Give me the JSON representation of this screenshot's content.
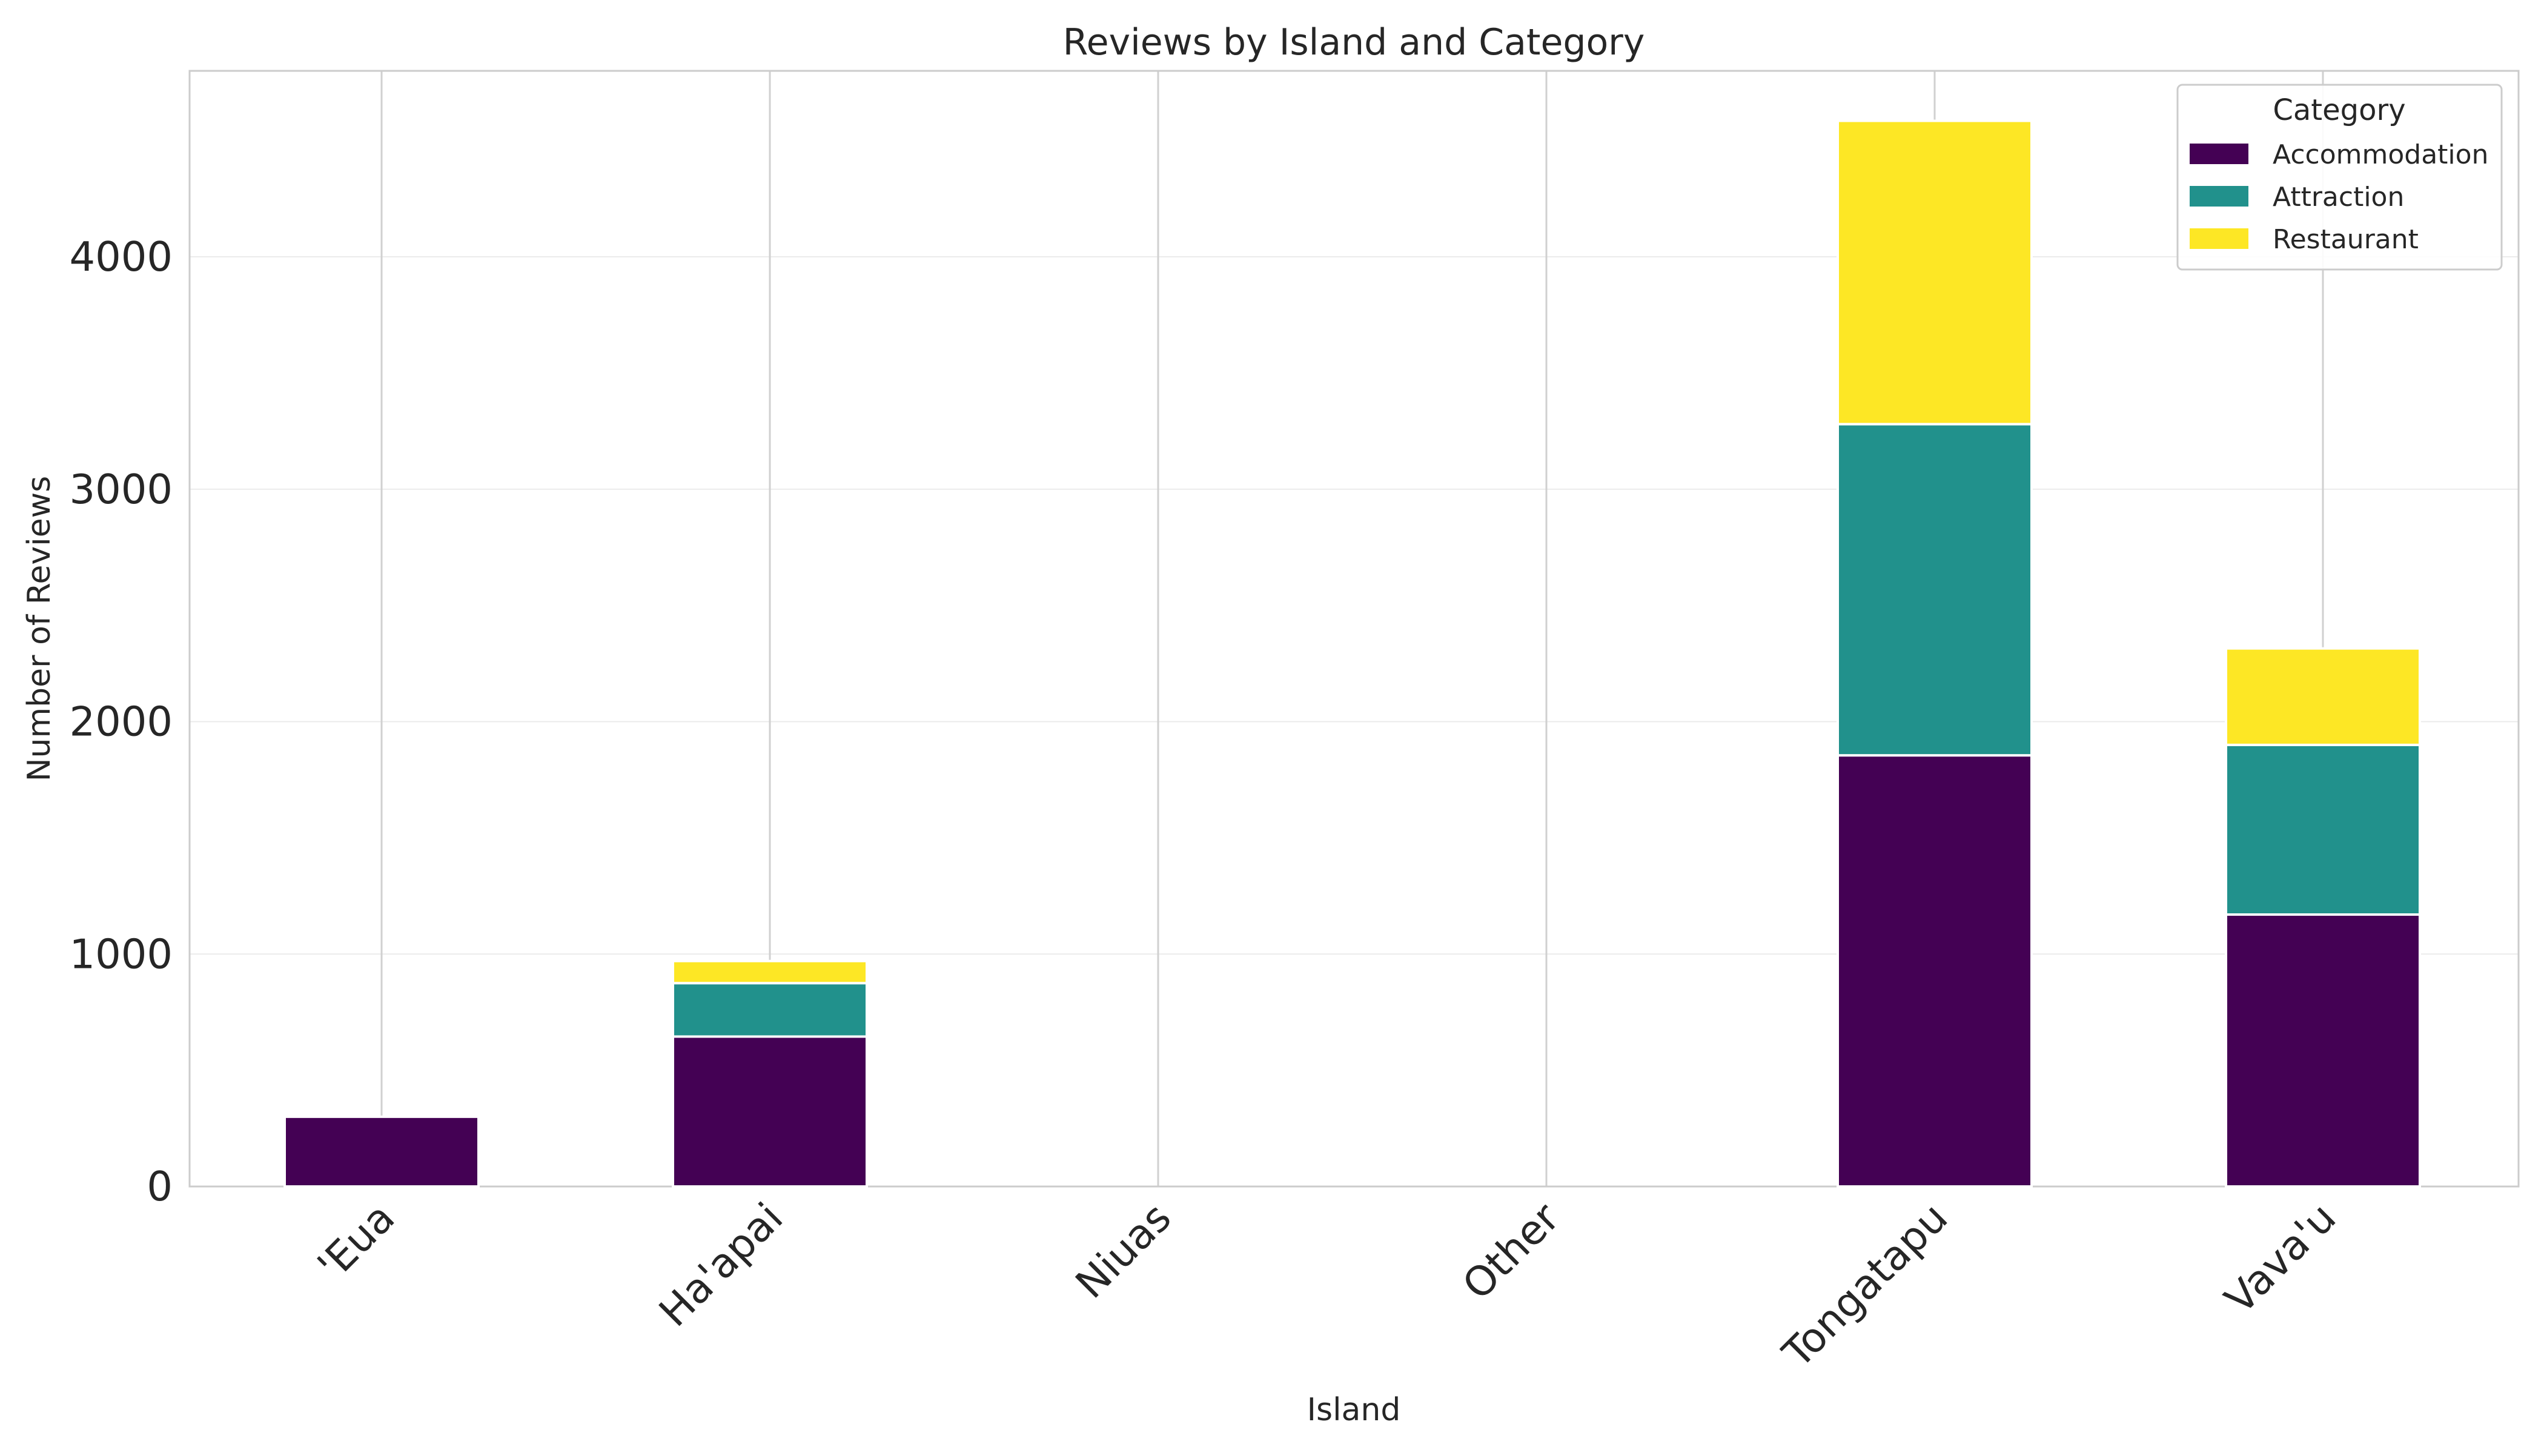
{
  "chart_data": {
    "type": "bar",
    "stacked": true,
    "title": "Reviews by Island and Category",
    "xlabel": "Island",
    "ylabel": "Number of Reviews",
    "categories": [
      "'Eua",
      "Ha'apai",
      "Niuas",
      "Other",
      "Tongatapu",
      "Vava'u"
    ],
    "series": [
      {
        "name": "Accommodation",
        "color": "#440154",
        "values": [
          300,
          645,
          0,
          0,
          1855,
          1170
        ]
      },
      {
        "name": "Attraction",
        "color": "#21918c",
        "values": [
          0,
          230,
          0,
          0,
          1425,
          730
        ]
      },
      {
        "name": "Restaurant",
        "color": "#fde725",
        "values": [
          0,
          95,
          0,
          0,
          1305,
          415
        ]
      }
    ],
    "ylim": [
      0,
      4800
    ],
    "yticks": [
      0,
      1000,
      2000,
      3000,
      4000
    ],
    "grid": true,
    "legend": {
      "title": "Category",
      "placement": "top-right"
    }
  }
}
